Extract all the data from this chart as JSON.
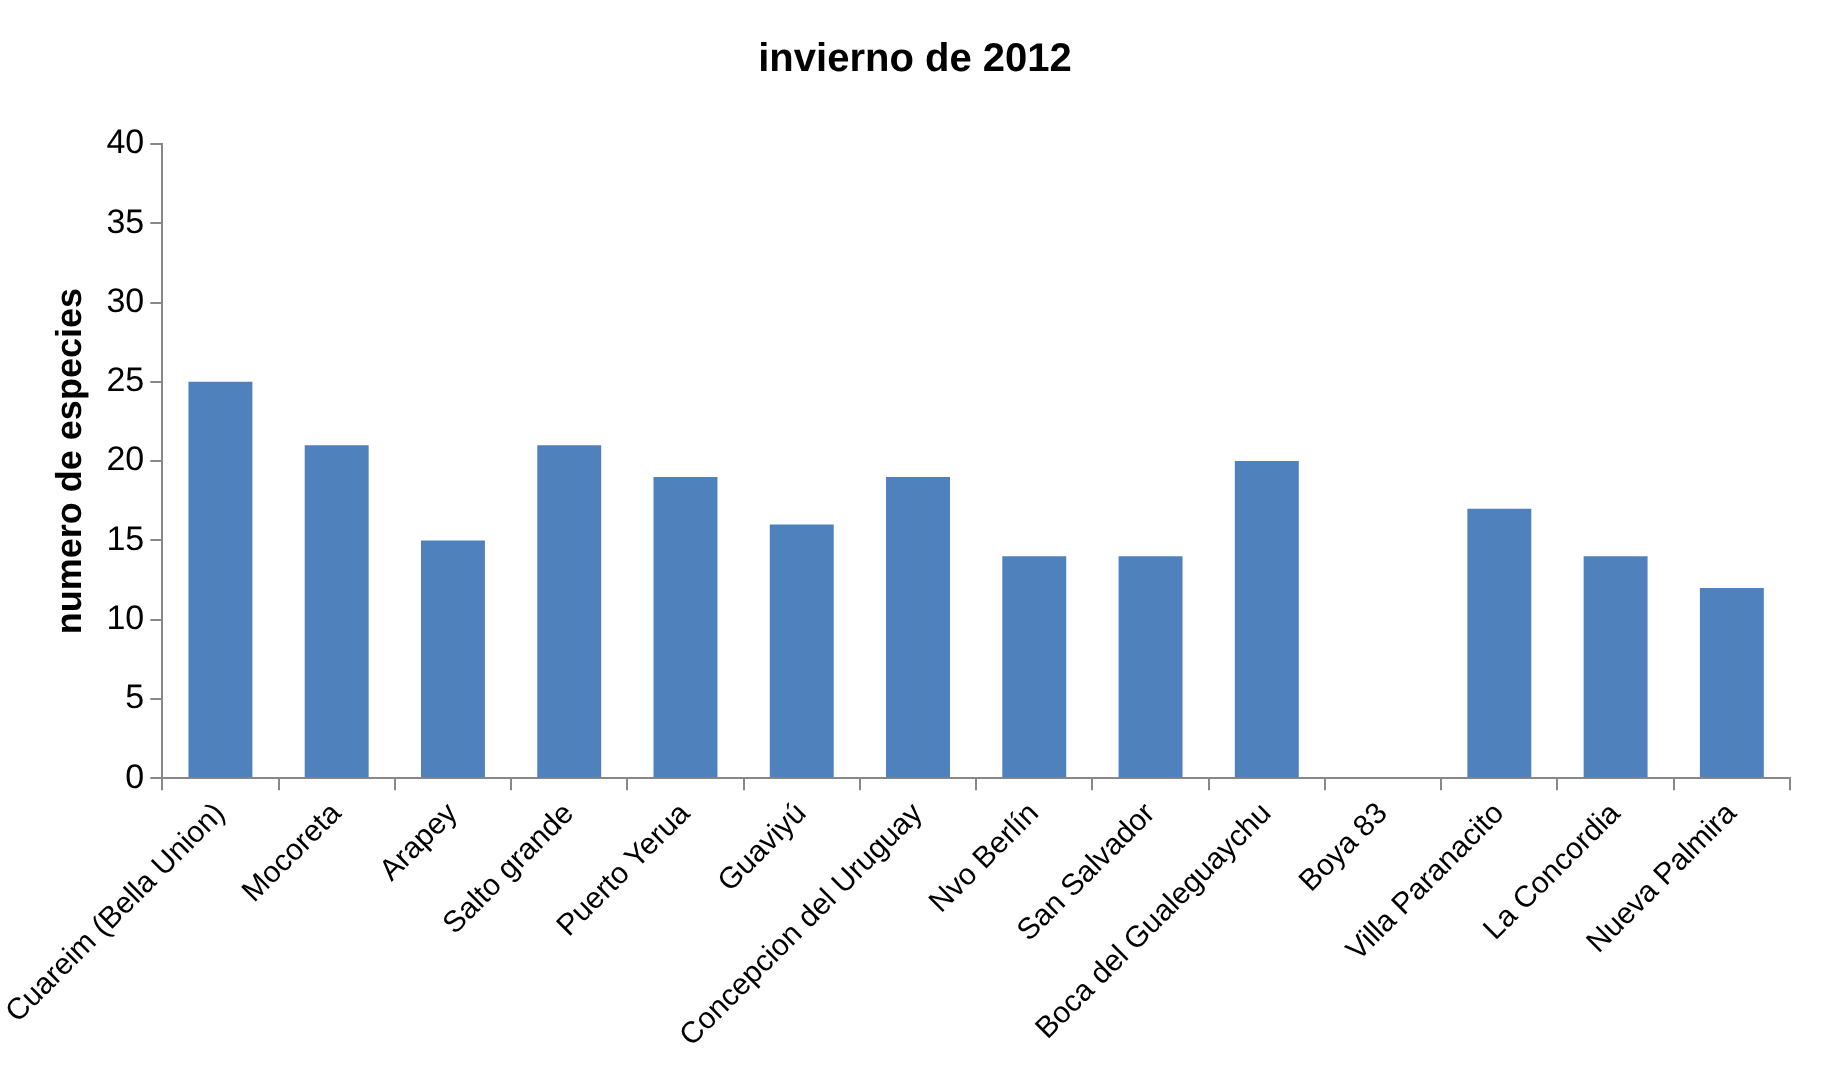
{
  "chart_data": {
    "type": "bar",
    "title": "invierno de 2012",
    "ylabel": "numero de especies",
    "categories": [
      "Cuareim (Bella Union)",
      "Mocoreta",
      "Arapey",
      "Salto grande",
      "Puerto Yerua",
      "Guaviyú",
      "Concepcion del Uruguay",
      "Nvo Berlín",
      "San Salvador",
      "Boca del Gualeguaychu",
      "Boya 83",
      "Villa Paranacito",
      "La Concordia",
      "Nueva Palmira"
    ],
    "values": [
      25,
      21,
      15,
      21,
      19,
      16,
      19,
      14,
      14,
      20,
      0,
      17,
      14,
      12
    ],
    "color": "#4f81bd",
    "ylim": [
      0,
      40
    ],
    "yticks": [
      0,
      5,
      10,
      15,
      20,
      25,
      30,
      35,
      40
    ],
    "grid": false,
    "legend": false
  }
}
